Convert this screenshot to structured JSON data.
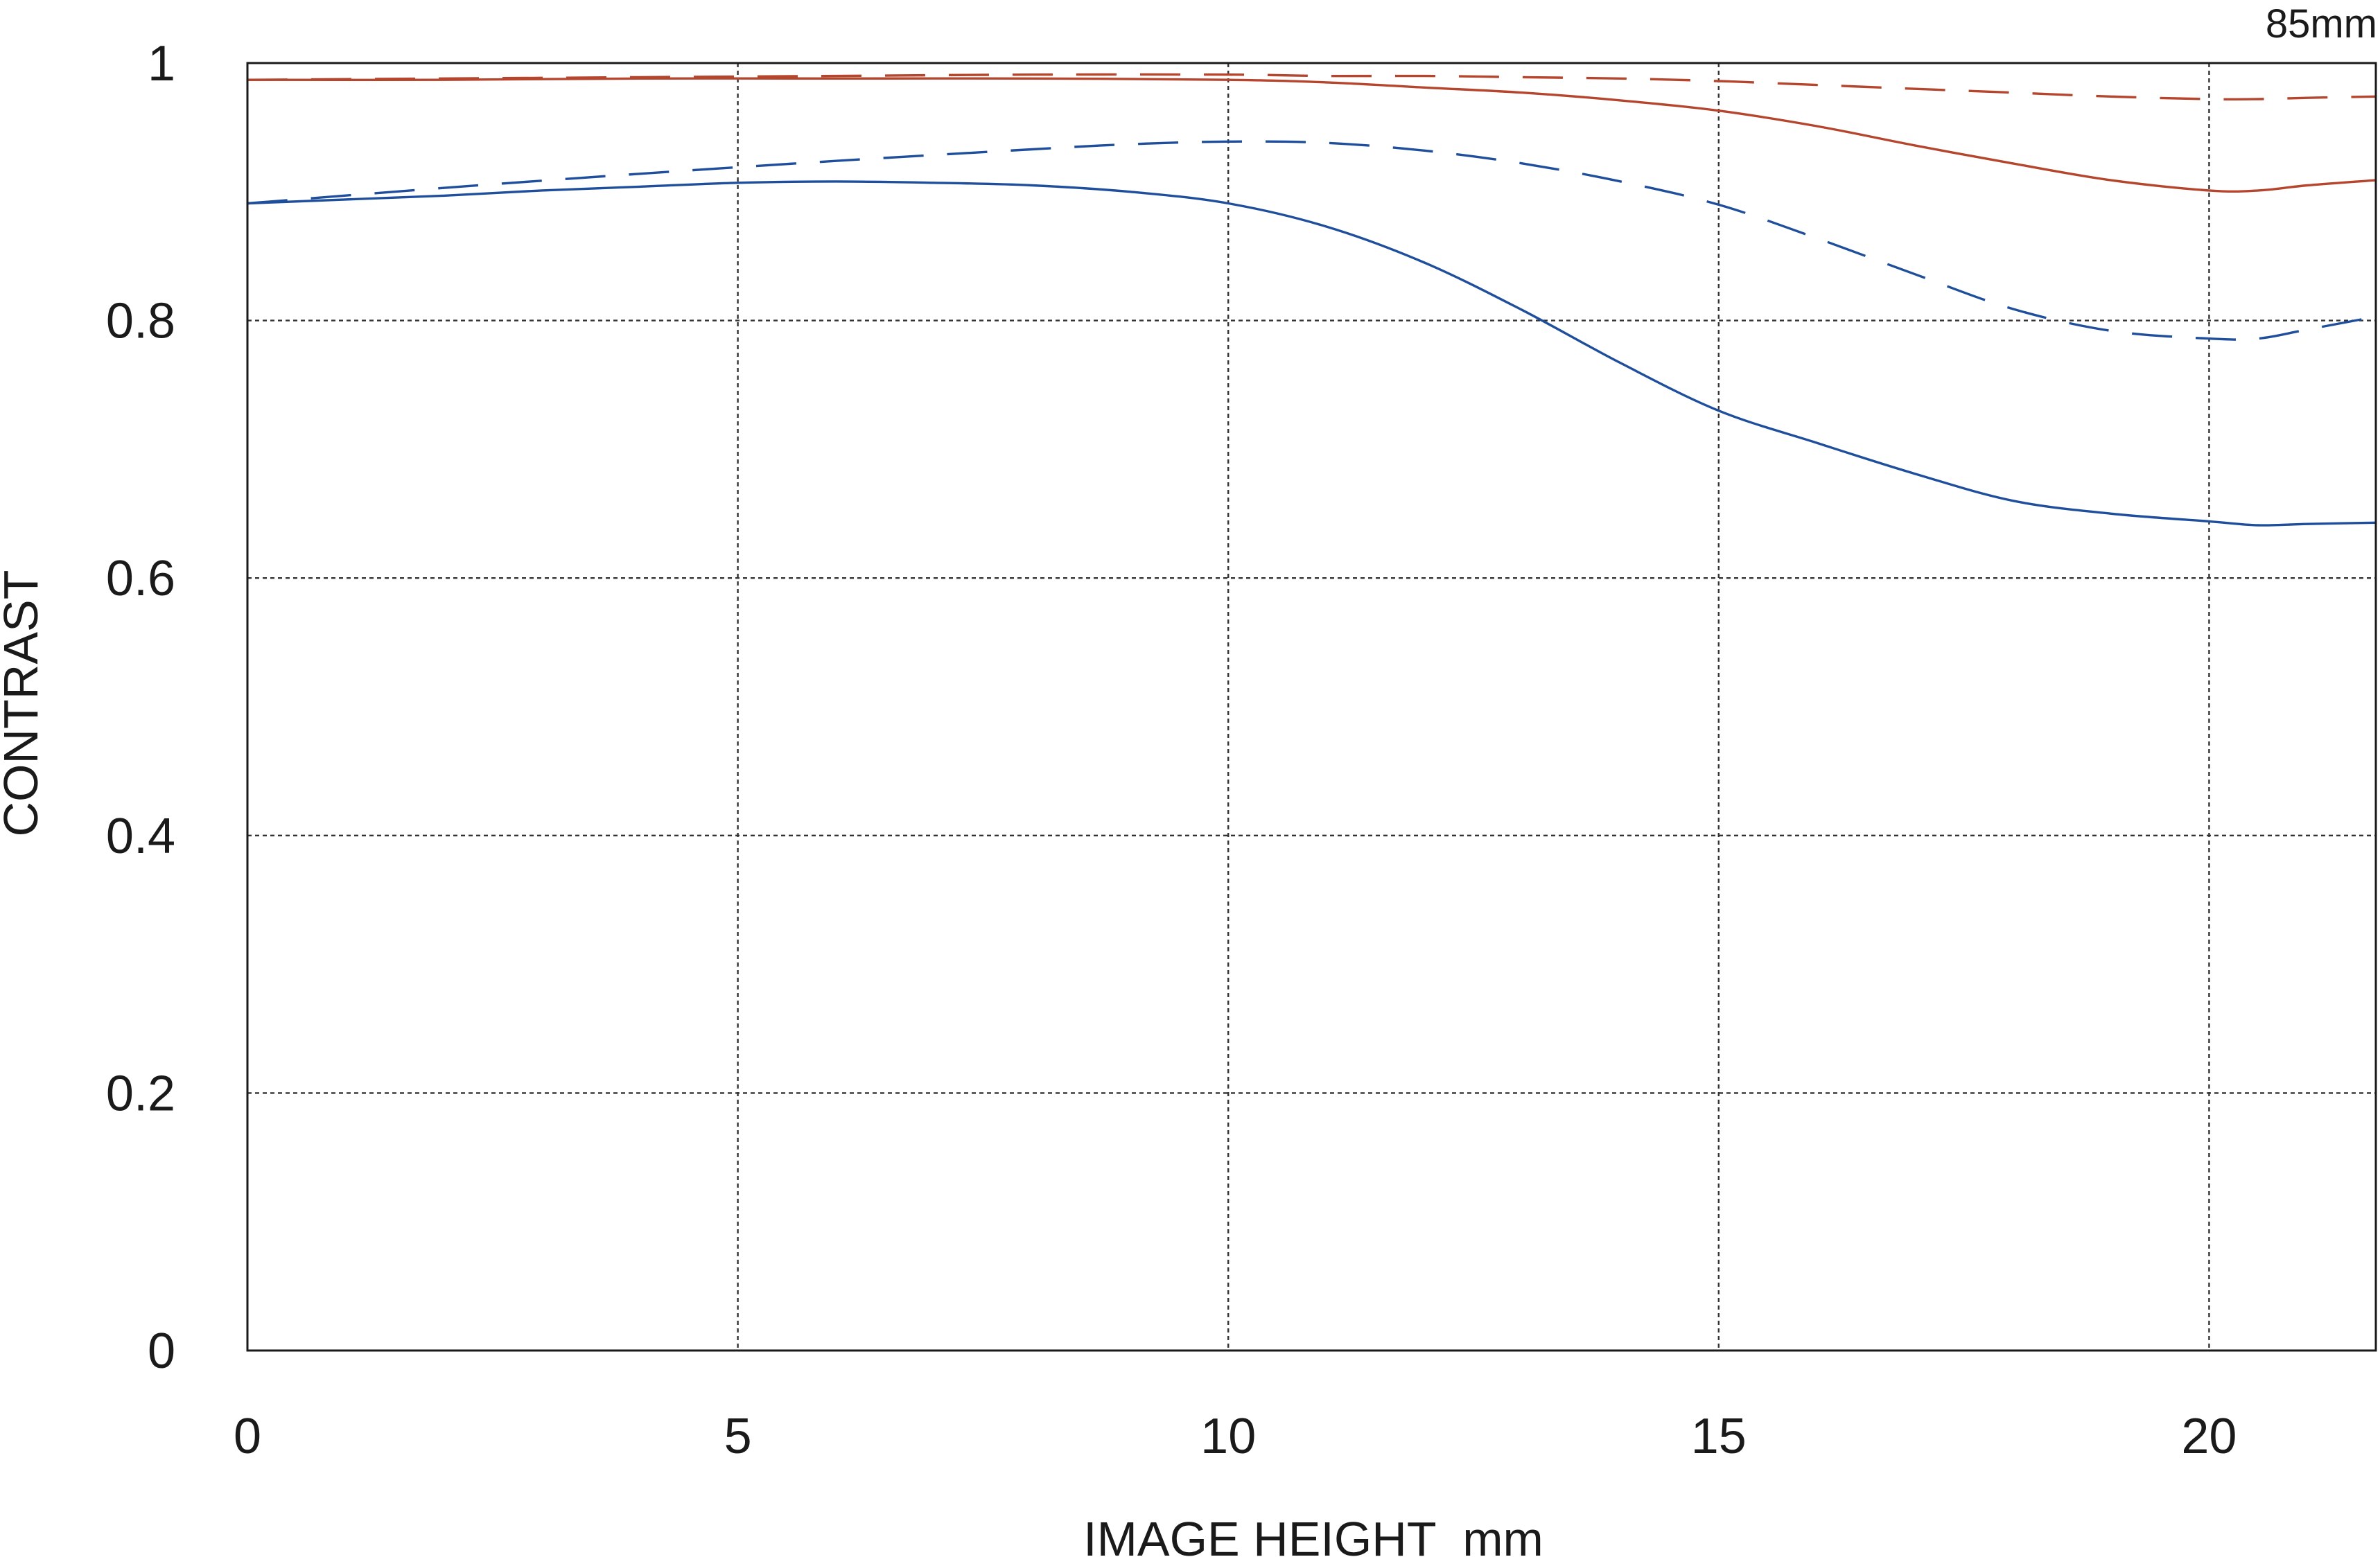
{
  "chart_data": {
    "type": "line",
    "title": "",
    "corner_label": "85mm",
    "xlabel": "IMAGE HEIGHT  mm",
    "ylabel": "CONTRAST",
    "xlim": [
      0,
      21.7
    ],
    "ylim": [
      0,
      1
    ],
    "x_ticks": [
      0,
      5,
      10,
      15,
      20
    ],
    "x_tick_labels": [
      "0",
      "5",
      "10",
      "15",
      "20"
    ],
    "y_ticks": [
      0,
      0.2,
      0.4,
      0.6,
      0.8,
      1
    ],
    "y_tick_labels": [
      "0",
      "0.2",
      "0.4",
      "0.6",
      "0.8",
      "1"
    ],
    "grid": true,
    "legend": "none",
    "series": [
      {
        "color": "#b5452c",
        "style": "solid",
        "x": [
          0,
          2,
          4,
          6,
          8,
          10,
          11,
          12,
          13,
          14,
          15,
          16,
          17,
          18,
          19,
          20,
          20.5,
          21,
          21.7
        ],
        "y": [
          0.987,
          0.987,
          0.988,
          0.988,
          0.988,
          0.987,
          0.985,
          0.981,
          0.977,
          0.971,
          0.963,
          0.951,
          0.936,
          0.922,
          0.909,
          0.901,
          0.901,
          0.905,
          0.909
        ]
      },
      {
        "color": "#b5452c",
        "style": "dashed",
        "x": [
          0,
          2,
          4,
          6,
          8,
          10,
          11,
          12,
          13,
          14,
          15,
          16,
          17,
          18,
          19,
          20,
          20.5,
          21,
          21.7
        ],
        "y": [
          0.987,
          0.988,
          0.989,
          0.99,
          0.991,
          0.991,
          0.99,
          0.99,
          0.989,
          0.988,
          0.986,
          0.983,
          0.98,
          0.977,
          0.974,
          0.972,
          0.972,
          0.973,
          0.974
        ]
      },
      {
        "color": "#1f4f9c",
        "style": "solid",
        "x": [
          0,
          1,
          2,
          3,
          4,
          5,
          6,
          7,
          8,
          9,
          10,
          11,
          12,
          13,
          14,
          15,
          16,
          17,
          18,
          19,
          20,
          20.5,
          21,
          21.7
        ],
        "y": [
          0.891,
          0.894,
          0.897,
          0.901,
          0.904,
          0.907,
          0.908,
          0.907,
          0.905,
          0.9,
          0.891,
          0.873,
          0.845,
          0.808,
          0.767,
          0.73,
          0.705,
          0.681,
          0.66,
          0.65,
          0.644,
          0.641,
          0.642,
          0.643
        ]
      },
      {
        "color": "#1f4f9c",
        "style": "dashed",
        "x": [
          0,
          2,
          4,
          6,
          8,
          9,
          10,
          11,
          12,
          13,
          14,
          15,
          16,
          17,
          18,
          19,
          20,
          20.5,
          21,
          21.7
        ],
        "y": [
          0.891,
          0.903,
          0.914,
          0.924,
          0.933,
          0.937,
          0.939,
          0.938,
          0.932,
          0.922,
          0.908,
          0.89,
          0.864,
          0.836,
          0.809,
          0.792,
          0.786,
          0.786,
          0.793,
          0.803
        ]
      }
    ]
  }
}
